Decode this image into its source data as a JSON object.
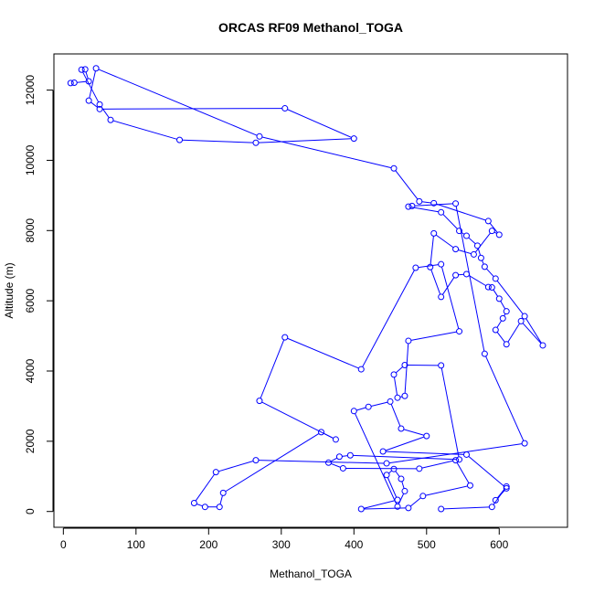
{
  "chart_data": {
    "type": "line",
    "title": "ORCAS RF09 Methanol_TOGA",
    "xlabel": "Methanol_TOGA",
    "ylabel": "Altitude (m)",
    "xlim": [
      -13,
      694
    ],
    "ylim": [
      -450,
      13030
    ],
    "xticks": [
      0,
      100,
      200,
      300,
      400,
      500,
      600
    ],
    "yticks": [
      0,
      2000,
      4000,
      6000,
      8000,
      10000,
      12000
    ],
    "color": "#0000ff",
    "markers": "open-circle",
    "series": [
      {
        "x": [
          10,
          15,
          35,
          30,
          25,
          50,
          65,
          160,
          265,
          400,
          305,
          50,
          35,
          45,
          270,
          455,
          490,
          510,
          585,
          600,
          590,
          565,
          540,
          510,
          505,
          520,
          540,
          555,
          585,
          590,
          600,
          610,
          605,
          595,
          610,
          630,
          660,
          635,
          595,
          580,
          575,
          570,
          555,
          545,
          520,
          475,
          480,
          540,
          580,
          635,
          445,
          265,
          210,
          180,
          195,
          215,
          220,
          355,
          375,
          270,
          305,
          410,
          485,
          520,
          545,
          475,
          470,
          460,
          455,
          470,
          520,
          545,
          395,
          380,
          365,
          385,
          490,
          540,
          560,
          495,
          475,
          410,
          460,
          445,
          455,
          465,
          470,
          460,
          400,
          420,
          450,
          465,
          500,
          440,
          555,
          610,
          595,
          610,
          590,
          520
        ],
        "y": [
          12200,
          12210,
          12250,
          12590,
          12580,
          11590,
          11150,
          10580,
          10500,
          10620,
          11480,
          11460,
          11700,
          12620,
          10680,
          9770,
          8830,
          8780,
          8270,
          7880,
          7990,
          7320,
          7470,
          7920,
          6960,
          6110,
          6730,
          6760,
          6390,
          6380,
          6060,
          5700,
          5500,
          5170,
          4760,
          5420,
          4730,
          5560,
          6630,
          6970,
          7220,
          7570,
          7850,
          7990,
          8520,
          8680,
          8700,
          8770,
          4490,
          1940,
          1370,
          1460,
          1120,
          240,
          130,
          130,
          530,
          2260,
          2050,
          3150,
          4960,
          4050,
          6940,
          7040,
          5130,
          4860,
          3290,
          3240,
          3900,
          4170,
          4160,
          1480,
          1600,
          1560,
          1390,
          1230,
          1220,
          1460,
          740,
          440,
          100,
          70,
          330,
          1040,
          1210,
          930,
          580,
          140,
          2860,
          2980,
          3130,
          2360,
          2150,
          1710,
          1620,
          660,
          320,
          710,
          130,
          70
        ]
      }
    ]
  }
}
